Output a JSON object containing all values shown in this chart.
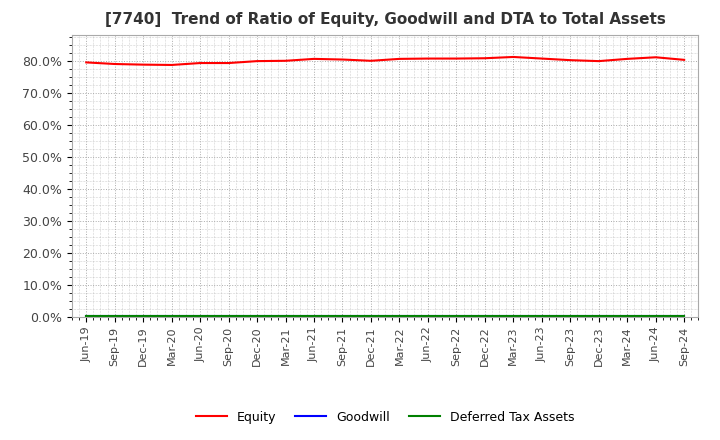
{
  "title": "[7740]  Trend of Ratio of Equity, Goodwill and DTA to Total Assets",
  "title_fontsize": 11,
  "ylim": [
    0.0,
    0.88
  ],
  "yticks": [
    0.0,
    0.1,
    0.2,
    0.3,
    0.4,
    0.5,
    0.6,
    0.7,
    0.8
  ],
  "yticklabels": [
    "0.0%",
    "10.0%",
    "20.0%",
    "30.0%",
    "40.0%",
    "50.0%",
    "60.0%",
    "70.0%",
    "80.0%"
  ],
  "xtick_labels": [
    "Jun-19",
    "Sep-19",
    "Dec-19",
    "Mar-20",
    "Jun-20",
    "Sep-20",
    "Dec-20",
    "Mar-21",
    "Jun-21",
    "Sep-21",
    "Dec-21",
    "Mar-22",
    "Jun-22",
    "Sep-22",
    "Dec-22",
    "Mar-23",
    "Jun-23",
    "Sep-23",
    "Dec-23",
    "Mar-24",
    "Jun-24",
    "Sep-24"
  ],
  "equity": [
    0.795,
    0.79,
    0.788,
    0.787,
    0.793,
    0.793,
    0.799,
    0.8,
    0.806,
    0.804,
    0.8,
    0.806,
    0.807,
    0.807,
    0.808,
    0.812,
    0.807,
    0.802,
    0.799,
    0.806,
    0.811,
    0.803
  ],
  "goodwill": [
    0.001,
    0.001,
    0.001,
    0.001,
    0.001,
    0.001,
    0.001,
    0.001,
    0.001,
    0.001,
    0.001,
    0.001,
    0.001,
    0.001,
    0.001,
    0.001,
    0.001,
    0.001,
    0.001,
    0.001,
    0.001,
    0.001
  ],
  "dta": [
    0.004,
    0.004,
    0.004,
    0.004,
    0.004,
    0.004,
    0.004,
    0.004,
    0.004,
    0.004,
    0.004,
    0.004,
    0.004,
    0.004,
    0.004,
    0.004,
    0.004,
    0.004,
    0.004,
    0.004,
    0.004,
    0.004
  ],
  "equity_color": "#FF0000",
  "goodwill_color": "#0000FF",
  "dta_color": "#008000",
  "bg_color": "#FFFFFF",
  "plot_bg_color": "#FFFFFF",
  "grid_color": "#AAAAAA",
  "legend_labels": [
    "Equity",
    "Goodwill",
    "Deferred Tax Assets"
  ],
  "line_width": 1.5
}
